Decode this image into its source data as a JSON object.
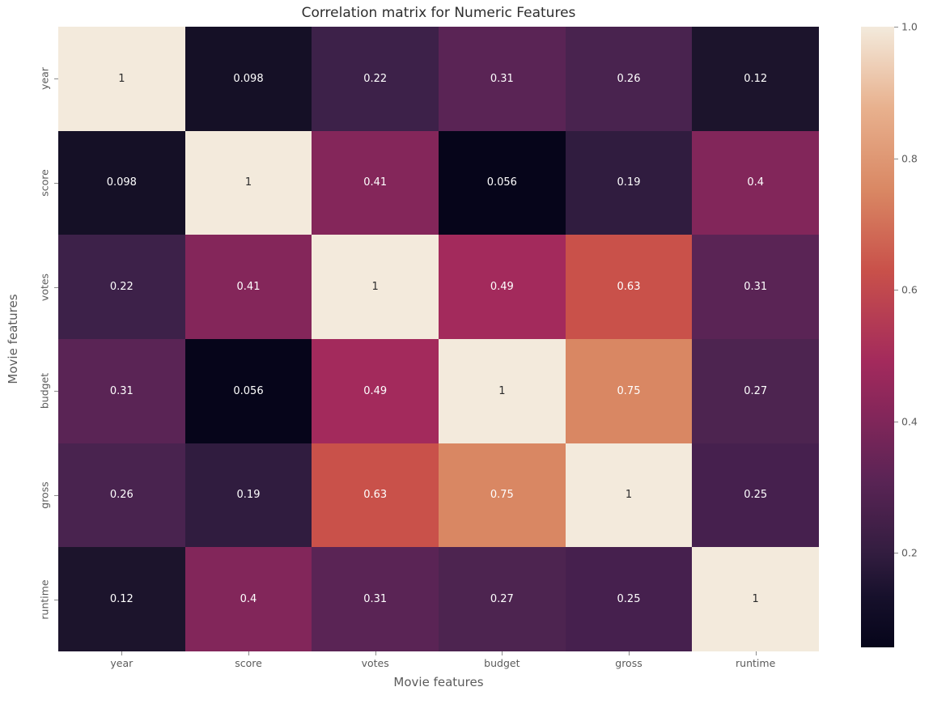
{
  "title": "Correlation matrix for Numeric Features",
  "chart_data": {
    "type": "heatmap",
    "title": "Correlation matrix for Numeric Features",
    "xlabel": "Movie features",
    "ylabel": "Movie features",
    "categories": [
      "year",
      "score",
      "votes",
      "budget",
      "gross",
      "runtime"
    ],
    "values": [
      [
        1,
        0.098,
        0.22,
        0.31,
        0.26,
        0.12
      ],
      [
        0.098,
        1,
        0.41,
        0.056,
        0.19,
        0.4
      ],
      [
        0.22,
        0.41,
        1,
        0.49,
        0.63,
        0.31
      ],
      [
        0.31,
        0.056,
        0.49,
        1,
        0.75,
        0.27
      ],
      [
        0.26,
        0.19,
        0.63,
        0.75,
        1,
        0.25
      ],
      [
        0.12,
        0.4,
        0.31,
        0.27,
        0.25,
        1
      ]
    ],
    "cell_labels": [
      [
        "1",
        "0.098",
        "0.22",
        "0.31",
        "0.26",
        "0.12"
      ],
      [
        "0.098",
        "1",
        "0.41",
        "0.056",
        "0.19",
        "0.4"
      ],
      [
        "0.22",
        "0.41",
        "1",
        "0.49",
        "0.63",
        "0.31"
      ],
      [
        "0.31",
        "0.056",
        "0.49",
        "1",
        "0.75",
        "0.27"
      ],
      [
        "0.26",
        "0.19",
        "0.63",
        "0.75",
        "1",
        "0.25"
      ],
      [
        "0.12",
        "0.4",
        "0.31",
        "0.27",
        "0.25",
        "1"
      ]
    ],
    "cell_colors": [
      [
        "#F3EADC",
        "#151026",
        "#3D2149",
        "#5A2455",
        "#49234F",
        "#1C142C"
      ],
      [
        "#151026",
        "#F3EADC",
        "#84265A",
        "#06051A",
        "#301C3F",
        "#82265A"
      ],
      [
        "#3D2149",
        "#84265A",
        "#F3EADC",
        "#A32A5C",
        "#C9514A",
        "#5A2455"
      ],
      [
        "#5A2455",
        "#06051A",
        "#A32A5C",
        "#F3EADC",
        "#D98763",
        "#4D2450"
      ],
      [
        "#49234F",
        "#301C3F",
        "#C9514A",
        "#D98763",
        "#F3EADC",
        "#46204E"
      ],
      [
        "#1C142C",
        "#82265A",
        "#5A2455",
        "#4D2450",
        "#46204E",
        "#F3EADC"
      ]
    ],
    "text_color_light": "#ffffff",
    "text_color_dark": "#2b2b2b",
    "colormap": "rocket",
    "grid": false,
    "colorbar": {
      "vmin": 0.056,
      "vmax": 1.0,
      "tick_labels": [
        "1.0",
        "0.8",
        "0.6",
        "0.4",
        "0.2"
      ],
      "tick_values": [
        1.0,
        0.8,
        0.6,
        0.4,
        0.2
      ],
      "gradient_stops": [
        {
          "pos": 0,
          "color": "#06051A"
        },
        {
          "pos": 8,
          "color": "#16102B"
        },
        {
          "pos": 15.3,
          "color": "#331D40"
        },
        {
          "pos": 26.9,
          "color": "#5A2455"
        },
        {
          "pos": 37.5,
          "color": "#84265A"
        },
        {
          "pos": 46,
          "color": "#A32A5C"
        },
        {
          "pos": 60.8,
          "color": "#C9514A"
        },
        {
          "pos": 73.5,
          "color": "#D98763"
        },
        {
          "pos": 87,
          "color": "#E8B18E"
        },
        {
          "pos": 100,
          "color": "#F3EADC"
        }
      ]
    }
  }
}
